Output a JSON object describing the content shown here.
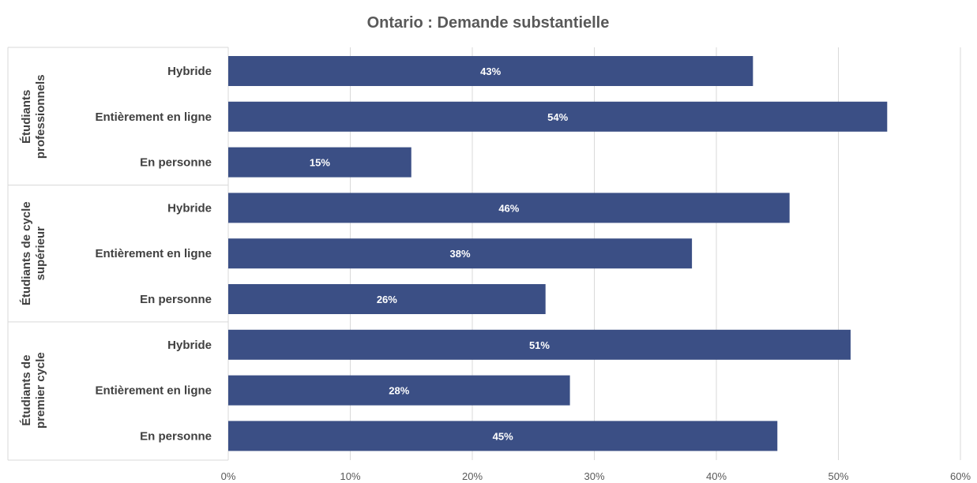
{
  "chart_data": {
    "type": "bar",
    "orientation": "horizontal",
    "title": "Ontario : Demande substantielle",
    "bar_color": "#3b4f85",
    "label_color": "#ffffff",
    "xlim": [
      0,
      60
    ],
    "x_ticks": [
      "0%",
      "10%",
      "20%",
      "30%",
      "40%",
      "50%",
      "60%"
    ],
    "grid": true,
    "groups": [
      {
        "name": [
          "Étudiants",
          "professionnels"
        ],
        "bars": [
          {
            "category": "Hybride",
            "value": 43,
            "label": "43%"
          },
          {
            "category": "Entièrement en ligne",
            "value": 54,
            "label": "54%"
          },
          {
            "category": "En personne",
            "value": 15,
            "label": "15%"
          }
        ]
      },
      {
        "name": [
          "Étudiants de cycle",
          "supérieur"
        ],
        "bars": [
          {
            "category": "Hybride",
            "value": 46,
            "label": "46%"
          },
          {
            "category": "Entièrement en ligne",
            "value": 38,
            "label": "38%"
          },
          {
            "category": "En personne",
            "value": 26,
            "label": "26%"
          }
        ]
      },
      {
        "name": [
          "Étudiants de",
          "premier cycle"
        ],
        "bars": [
          {
            "category": "Hybride",
            "value": 51,
            "label": "51%"
          },
          {
            "category": "Entièrement en ligne",
            "value": 28,
            "label": "28%"
          },
          {
            "category": "En personne",
            "value": 45,
            "label": "45%"
          }
        ]
      }
    ]
  }
}
